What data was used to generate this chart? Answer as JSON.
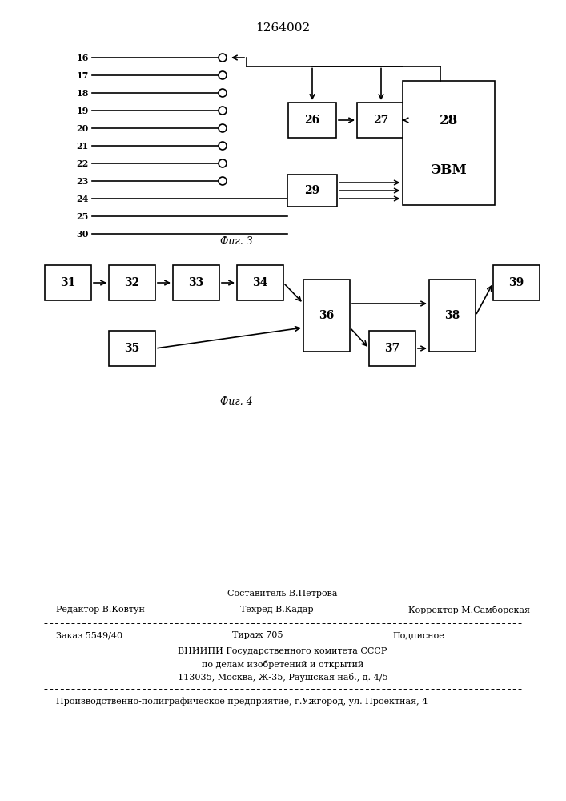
{
  "title": "1264002",
  "fig3_label": "Фиг. 3",
  "fig4_label": "Фиг. 4",
  "bg": "#ffffff",
  "lc": "#000000",
  "wire_labels_top": [
    "16",
    "17",
    "18",
    "19",
    "20",
    "21",
    "22",
    "23"
  ],
  "wire_labels_bottom": [
    "24",
    "25",
    "30"
  ],
  "footer_sestavitel": "Составитель В.Петрова",
  "footer_redaktor": "Редактор В.Ковтун",
  "footer_tekhred": "Техред В.Кадар",
  "footer_korrektor": "Корректор М.Самборская",
  "footer_zakaz": "Заказ 5549/40",
  "footer_tirazh": "Тираж 705",
  "footer_podpisnoe": "Подписное",
  "footer_vniip": "ВНИИПИ Государственного комитета СССР",
  "footer_po_delam": "по делам изобретений и открытий",
  "footer_addr": "113035, Москва, Ж-35, Раушская наб., д. 4/5",
  "footer_prod": "Производственно-полиграфическое предприятие, г.Ужгород, ул. Проектная, 4"
}
